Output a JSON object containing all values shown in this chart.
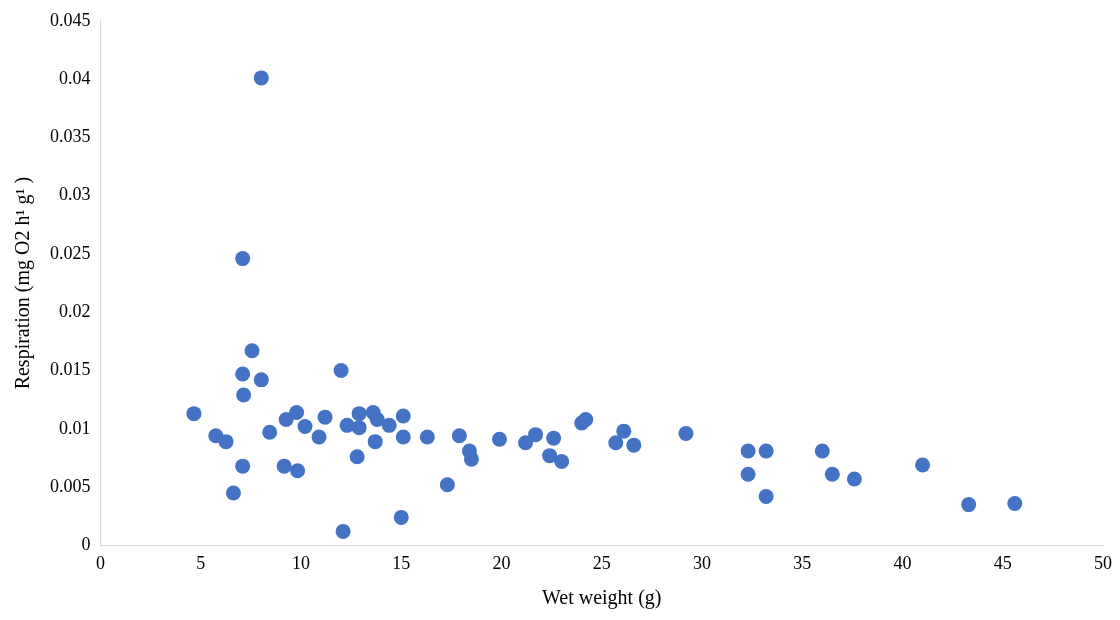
{
  "chart_data": {
    "type": "scatter",
    "xlabel": "Wet weight (g)",
    "ylabel": "Respiration (mg O2 h¹ g¹ )",
    "x": [
      4.66,
      5.75,
      6.26,
      6.63,
      7.09,
      7.09,
      7.14,
      7.09,
      7.56,
      8.02,
      8.02,
      8.44,
      9.16,
      9.26,
      9.78,
      9.83,
      10.2,
      10.9,
      11.2,
      12.0,
      12.1,
      12.3,
      12.8,
      12.9,
      12.9,
      13.6,
      13.7,
      13.8,
      14.4,
      15.0,
      15.1,
      15.1,
      16.3,
      17.3,
      17.9,
      18.4,
      18.5,
      19.9,
      21.2,
      21.7,
      22.4,
      22.6,
      23.0,
      24.0,
      24.2,
      25.7,
      26.1,
      26.6,
      29.2,
      32.3,
      32.3,
      33.2,
      33.2,
      36.0,
      36.5,
      37.6,
      41.0,
      43.3,
      45.6
    ],
    "series": [
      {
        "color": "#4472c4",
        "values": [
          0.0113,
          0.0094,
          0.0089,
          0.0045,
          0.0246,
          0.0147,
          0.0129,
          0.0068,
          0.0167,
          0.0401,
          0.0142,
          0.0097,
          0.0068,
          0.0108,
          0.0114,
          0.0064,
          0.0102,
          0.0093,
          0.011,
          0.015,
          0.0012,
          0.0103,
          0.0076,
          0.0113,
          0.0101,
          0.0114,
          0.0089,
          0.0108,
          0.0103,
          0.0024,
          0.0093,
          0.0111,
          0.0093,
          0.0052,
          0.0094,
          0.0081,
          0.0074,
          0.0091,
          0.0088,
          0.0095,
          0.0077,
          0.0092,
          0.0072,
          0.0105,
          0.0108,
          0.0088,
          0.0098,
          0.0086,
          0.0096,
          0.0081,
          0.0061,
          0.0081,
          0.0042,
          0.0081,
          0.0061,
          0.0057,
          0.0069,
          0.0035,
          0.0036
        ]
      }
    ],
    "xlim": [
      0,
      50
    ],
    "xticks": [
      0,
      5,
      10,
      15,
      20,
      25,
      30,
      35,
      40,
      45,
      50
    ],
    "ylim": [
      0,
      0.045
    ],
    "yticks": [
      0,
      0.005,
      0.01,
      0.015,
      0.02,
      0.025,
      0.03,
      0.035,
      0.04,
      0.045
    ],
    "grid": false,
    "legend": false,
    "marker": "circle"
  }
}
